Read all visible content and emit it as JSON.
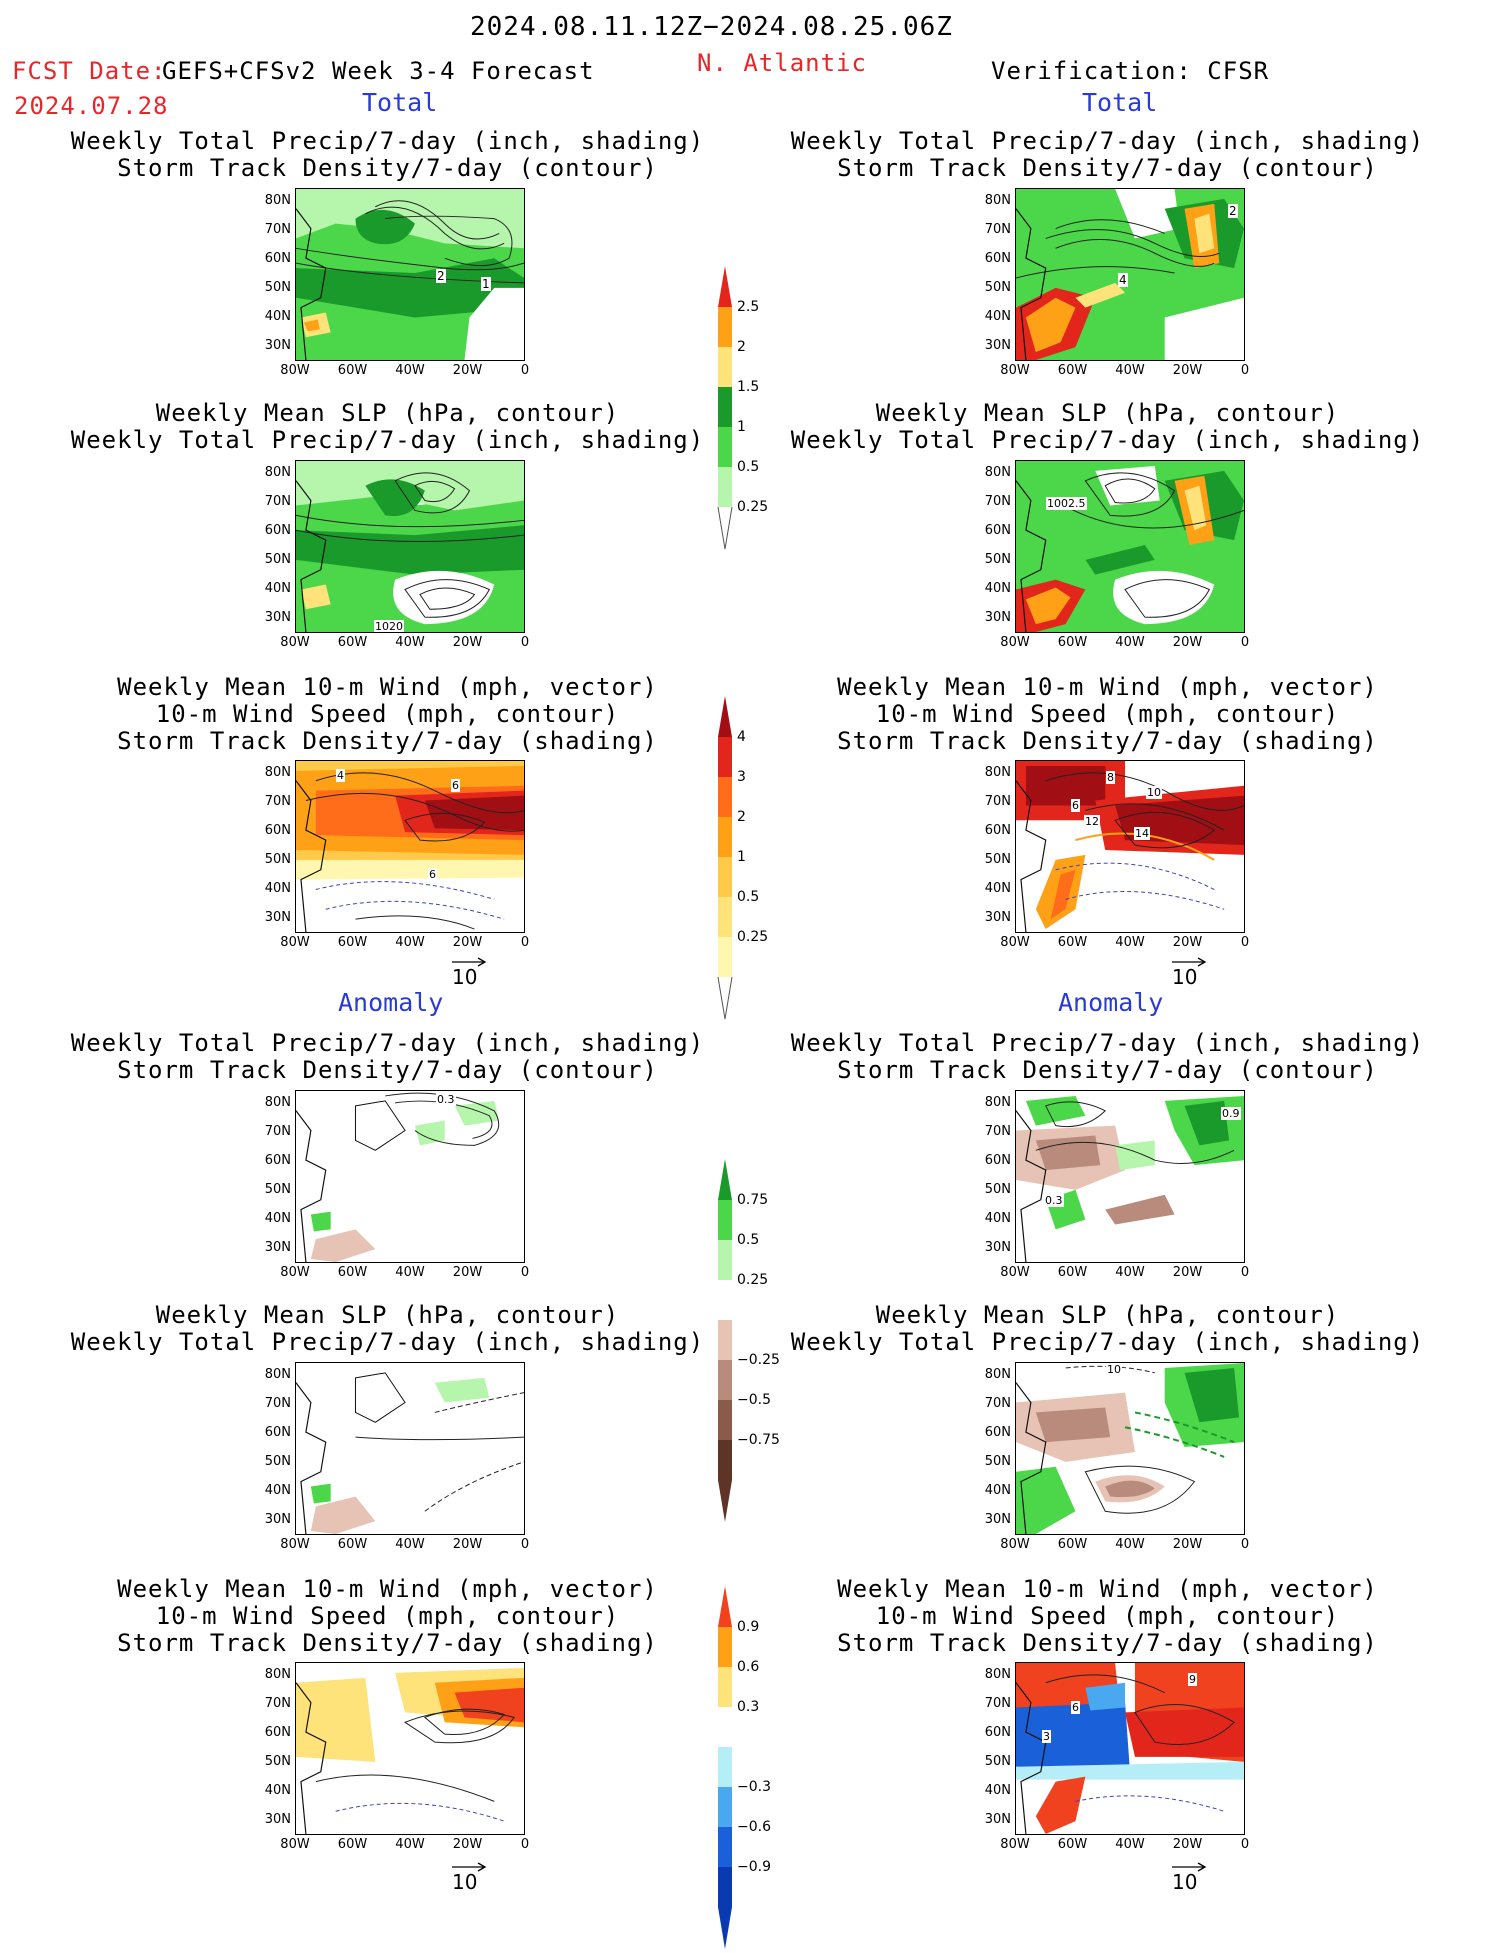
{
  "header": {
    "period": "2024.08.11.12Z−2024.08.25.06Z",
    "fcst_date_label": "FCST Date:",
    "fcst_date": "2024.07.28",
    "model": "GEFS+CFSv2 Week 3-4 Forecast",
    "region": "N. Atlantic",
    "verification": "Verification: CFSR"
  },
  "sections": {
    "total": "Total",
    "anomaly": "Anomaly"
  },
  "titles": {
    "precip_storm": [
      "Weekly Total Precip/7-day (inch, shading)",
      "Storm Track Density/7-day (contour)"
    ],
    "slp_precip": [
      "Weekly Mean SLP (hPa, contour)",
      "Weekly Total Precip/7-day (inch, shading)"
    ],
    "wind_storm": [
      "Weekly Mean 10-m Wind (mph, vector)",
      "10-m Wind Speed (mph, contour)",
      "Storm Track Density/7-day (shading)"
    ]
  },
  "axes": {
    "lat_ticks": [
      "80N",
      "70N",
      "60N",
      "50N",
      "40N",
      "30N"
    ],
    "lon_ticks": [
      "80W",
      "60W",
      "40W",
      "20W",
      "0"
    ]
  },
  "vector_ref": "10",
  "contour_labels": {
    "fcst_precip_total": [
      "2",
      "1"
    ],
    "verif_precip_total": [
      "2",
      "4"
    ],
    "fcst_slp_total": [
      "1020"
    ],
    "verif_slp_total": [
      "1002.5"
    ],
    "fcst_wind_total": [
      "4",
      "6",
      "6"
    ],
    "verif_wind_total": [
      "8",
      "10",
      "6",
      "12",
      "14"
    ],
    "fcst_precip_anom": [
      "0.3"
    ],
    "verif_precip_anom": [
      "0.9",
      "0.3"
    ],
    "verif_slp_anom": [
      "10"
    ],
    "verif_wind_anom": [
      "9",
      "6",
      "3"
    ]
  },
  "colorbars": {
    "precip_total": {
      "labels": [
        "2.5",
        "2",
        "1.5",
        "1",
        "0.5",
        "0.25"
      ],
      "colors": [
        "#e3261c",
        "#ffa117",
        "#fee27a",
        "#1a9a2a",
        "#4cd74a",
        "#b6f5ac"
      ]
    },
    "storm_total": {
      "labels": [
        "4",
        "3",
        "2",
        "1",
        "0.5",
        "0.25"
      ],
      "colors": [
        "#a10f14",
        "#e3261c",
        "#ff6c1a",
        "#ffa117",
        "#ffc94a",
        "#fee27a",
        "#fff7b0"
      ]
    },
    "precip_anom": {
      "labels": [
        "0.75",
        "0.5",
        "0.25",
        "−0.25",
        "−0.5",
        "−0.75"
      ],
      "colors": [
        "#1a9a2a",
        "#4cd74a",
        "#b6f5ac",
        "#ffffff",
        "#e6c3b5",
        "#b98b7c",
        "#8a5a4a",
        "#5e3426"
      ]
    },
    "storm_anom": {
      "labels": [
        "0.9",
        "0.6",
        "0.3",
        "−0.3",
        "−0.6",
        "−0.9"
      ],
      "colors": [
        "#f0421e",
        "#ffa117",
        "#fee27a",
        "#ffffff",
        "#b6eef8",
        "#4aa8f0",
        "#1a60d8",
        "#0a3ab0"
      ]
    }
  }
}
